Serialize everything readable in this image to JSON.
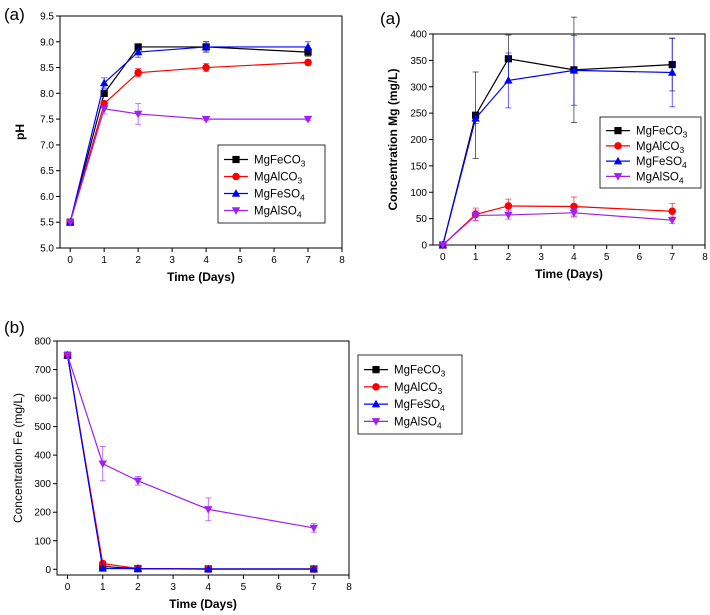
{
  "chart_data": [
    {
      "type": "line",
      "panel_label": "(a)",
      "title": "",
      "xlabel": "Time (Days)",
      "ylabel": "pH",
      "ylabel_bold": true,
      "xlim": [
        -0.3,
        8
      ],
      "ylim": [
        5.0,
        9.5
      ],
      "x_ticks": [
        0,
        1,
        2,
        3,
        4,
        5,
        6,
        7,
        8
      ],
      "y_ticks": [
        5.0,
        5.5,
        6.0,
        6.5,
        7.0,
        7.5,
        8.0,
        8.5,
        9.0,
        9.5
      ],
      "y_tick_labels": [
        "5.0",
        "5.5",
        "6.0",
        "6.5",
        "7.0",
        "7.5",
        "8.0",
        "8.5",
        "9.0",
        "9.5"
      ],
      "legend": "center-right",
      "x": [
        0,
        1,
        2,
        4,
        7
      ],
      "series": [
        {
          "name": "MgFeCO3",
          "sub": "3",
          "base": "MgFeCO",
          "color": "#000000",
          "marker": "square",
          "values": [
            5.5,
            8.0,
            8.9,
            8.9,
            8.8
          ],
          "errors": [
            0,
            0.05,
            0.05,
            0.1,
            0.08
          ]
        },
        {
          "name": "MgAlCO3",
          "sub": "3",
          "base": "MgAlCO",
          "color": "#ff0000",
          "marker": "circle",
          "values": [
            5.5,
            7.8,
            8.4,
            8.5,
            8.6
          ],
          "errors": [
            0,
            0.05,
            0.08,
            0.08,
            0.05
          ]
        },
        {
          "name": "MgFeSO4",
          "sub": "4",
          "base": "MgFeSO",
          "color": "#0000ff",
          "marker": "triangle",
          "values": [
            5.5,
            8.2,
            8.8,
            8.9,
            8.9
          ],
          "errors": [
            0,
            0.1,
            0.1,
            0.1,
            0.1
          ]
        },
        {
          "name": "MgAlSO4",
          "sub": "4",
          "base": "MgAlSO",
          "color": "#a020f0",
          "marker": "triangle-down",
          "values": [
            5.5,
            7.7,
            7.6,
            7.5,
            7.5
          ],
          "errors": [
            0,
            0.1,
            0.2,
            0.03,
            0.03
          ]
        }
      ]
    },
    {
      "type": "line",
      "panel_label": "(a)",
      "title": "",
      "xlabel": "Time (Days)",
      "ylabel": "Concentration Mg (mg/L)",
      "ylabel_bold": true,
      "xlim": [
        -0.3,
        8
      ],
      "ylim": [
        0,
        400
      ],
      "x_ticks": [
        0,
        1,
        2,
        3,
        4,
        5,
        6,
        7,
        8
      ],
      "y_ticks": [
        0,
        50,
        100,
        150,
        200,
        250,
        300,
        350,
        400
      ],
      "y_tick_labels": [
        "0",
        "50",
        "100",
        "150",
        "200",
        "250",
        "300",
        "350",
        "400"
      ],
      "legend": "center-right",
      "x": [
        0,
        1,
        2,
        4,
        7
      ],
      "series": [
        {
          "name": "MgFeCO3",
          "sub": "3",
          "base": "MgFeCO",
          "color": "#000000",
          "marker": "square",
          "values": [
            0,
            246,
            353,
            332,
            342
          ],
          "errors": [
            0,
            82,
            45,
            100,
            50
          ]
        },
        {
          "name": "MgAlCO3",
          "sub": "3",
          "base": "MgAlCO",
          "color": "#ff0000",
          "marker": "circle",
          "values": [
            0,
            58,
            74,
            73,
            64
          ],
          "errors": [
            0,
            12,
            13,
            18,
            15
          ]
        },
        {
          "name": "MgFeSO4",
          "sub": "4",
          "base": "MgFeSO",
          "color": "#0000ff",
          "marker": "triangle",
          "values": [
            0,
            240,
            312,
            331,
            327
          ],
          "errors": [
            0,
            10,
            52,
            66,
            65
          ]
        },
        {
          "name": "MgAlSO4",
          "sub": "4",
          "base": "MgAlSO",
          "color": "#a020f0",
          "marker": "triangle-down",
          "values": [
            0,
            56,
            57,
            61,
            47
          ],
          "errors": [
            0,
            10,
            8,
            8,
            6
          ]
        }
      ]
    },
    {
      "type": "line",
      "panel_label": "(b)",
      "title": "",
      "xlabel": "Time (Days)",
      "ylabel": "Concentration Fe (mg/L)",
      "ylabel_bold": false,
      "xlim": [
        -0.3,
        8
      ],
      "ylim": [
        -20,
        800
      ],
      "x_ticks": [
        0,
        1,
        2,
        3,
        4,
        5,
        6,
        7,
        8
      ],
      "y_ticks": [
        0,
        100,
        200,
        300,
        400,
        500,
        600,
        700,
        800
      ],
      "y_tick_labels": [
        "0",
        "100",
        "200",
        "300",
        "400",
        "500",
        "600",
        "700",
        "800"
      ],
      "legend": "top-right",
      "x": [
        0,
        1,
        2,
        4,
        7
      ],
      "series": [
        {
          "name": "MgFeCO3",
          "sub": "3",
          "base": "MgFeCO",
          "color": "#000000",
          "marker": "square",
          "values": [
            750,
            10,
            2,
            1,
            1
          ],
          "errors": [
            0,
            2,
            1,
            1,
            1
          ]
        },
        {
          "name": "MgAlCO3",
          "sub": "3",
          "base": "MgAlCO",
          "color": "#ff0000",
          "marker": "circle",
          "values": [
            750,
            20,
            3,
            1,
            1
          ],
          "errors": [
            0,
            5,
            1,
            1,
            1
          ]
        },
        {
          "name": "MgFeSO4",
          "sub": "4",
          "base": "MgFeSO",
          "color": "#0000ff",
          "marker": "triangle",
          "values": [
            750,
            3,
            2,
            1,
            1
          ],
          "errors": [
            0,
            1,
            1,
            1,
            1
          ]
        },
        {
          "name": "MgAlSO4",
          "sub": "4",
          "base": "MgAlSO",
          "color": "#a020f0",
          "marker": "triangle-down",
          "values": [
            750,
            370,
            310,
            210,
            145
          ],
          "errors": [
            0,
            60,
            15,
            40,
            15
          ]
        }
      ]
    }
  ]
}
